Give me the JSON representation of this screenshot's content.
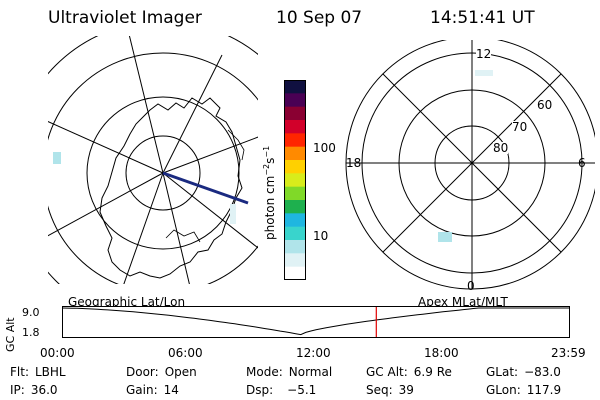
{
  "header": {
    "instrument": "Ultraviolet Imager",
    "date": "10 Sep 07",
    "time": "14:51:41 UT"
  },
  "colorbar": {
    "label_main": "photon cm",
    "label_exp1": "−2",
    "label_mid": "s",
    "label_exp2": "−1",
    "ticks": [
      "100",
      "10"
    ],
    "colors": [
      "#ffffff",
      "#e0f2f5",
      "#b0e4ea",
      "#39d4cc",
      "#1fb6e0",
      "#1eb04e",
      "#80d928",
      "#d8ec1b",
      "#ffd000",
      "#ff8a00",
      "#ff2500",
      "#d2002a",
      "#8a0032",
      "#4a0054",
      "#101040"
    ]
  },
  "right_map": {
    "mlt_labels": {
      "top": "12",
      "left": "18",
      "right": "6",
      "bottom": "0"
    },
    "lat_labels": [
      "60",
      "70",
      "80"
    ]
  },
  "timeline": {
    "left_title": "Geographic Lat/Lon",
    "right_title": "Apex MLat/MLT",
    "y_axis_label": "GC Alt",
    "y_ticks": [
      "9.0",
      "1.8"
    ],
    "x_ticks": [
      "00:00",
      "06:00",
      "12:00",
      "18:00",
      "23:59"
    ],
    "cursor_time": "14:51",
    "cursor_color": "#e00000"
  },
  "status": {
    "flt_label": "Flt:",
    "flt_value": "LBHL",
    "ip_label": "IP:",
    "ip_value": "36.0",
    "door_label": "Door:",
    "door_value": "Open",
    "gain_label": "Gain:",
    "gain_value": "14",
    "mode_label": "Mode:",
    "mode_value": "Normal",
    "dsp_label": "Dsp:",
    "dsp_value": "−5.1",
    "gcalt_label": "GC Alt:",
    "gcalt_value": "6.9 Re",
    "seq_label": "Seq:",
    "seq_value": "39",
    "glat_label": "GLat:",
    "glat_value": "−83.0",
    "glon_label": "GLon:",
    "glon_value": "117.9"
  }
}
